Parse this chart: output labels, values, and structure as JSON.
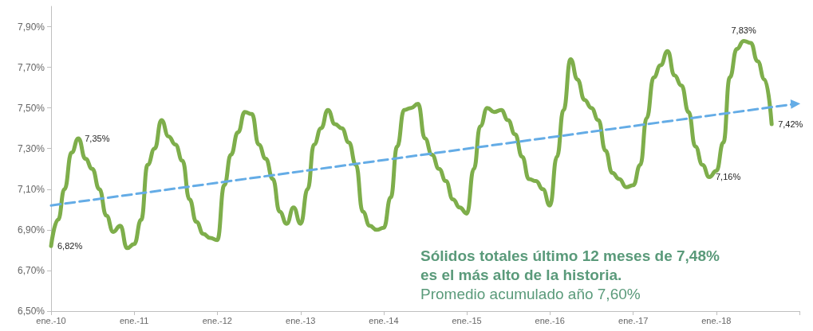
{
  "chart_data": {
    "type": "line",
    "annotations": [
      "Sólidos totales último 12 meses de 7,48%",
      "es el más alto de la historia.",
      "Promedio acumulado año 7,60%"
    ],
    "xlim": [
      "2010-01",
      "2019-01"
    ],
    "xticks": [
      {
        "value": "2010-01",
        "label": "ene.-10"
      },
      {
        "value": "2011-01",
        "label": "ene.-11"
      },
      {
        "value": "2012-01",
        "label": "ene.-12"
      },
      {
        "value": "2013-01",
        "label": "ene.-13"
      },
      {
        "value": "2014-01",
        "label": "ene.-14"
      },
      {
        "value": "2015-01",
        "label": "ene.-15"
      },
      {
        "value": "2016-01",
        "label": "ene.-16"
      },
      {
        "value": "2017-01",
        "label": "ene.-17"
      },
      {
        "value": "2018-01",
        "label": "ene.-18"
      },
      {
        "value": "2019-01",
        "label": null
      }
    ],
    "ylim": [
      6.5,
      8.0
    ],
    "yticks": [
      {
        "value": 6.5,
        "label": "6,50%"
      },
      {
        "value": 6.7,
        "label": "6,70%"
      },
      {
        "value": 6.9,
        "label": "6,90%"
      },
      {
        "value": 7.1,
        "label": "7,10%"
      },
      {
        "value": 7.3,
        "label": "7,30%"
      },
      {
        "value": 7.5,
        "label": "7,50%"
      },
      {
        "value": 7.7,
        "label": "7,70%"
      },
      {
        "value": 7.9,
        "label": "7,90%"
      }
    ],
    "grid": false,
    "series": [
      {
        "color": "#7eae4b",
        "line_style": "solid",
        "x": [
          "2010-01",
          "2010-02",
          "2010-03",
          "2010-04",
          "2010-05",
          "2010-06",
          "2010-07",
          "2010-08",
          "2010-09",
          "2010-10",
          "2010-11",
          "2010-12",
          "2011-01",
          "2011-02",
          "2011-03",
          "2011-04",
          "2011-05",
          "2011-06",
          "2011-07",
          "2011-08",
          "2011-09",
          "2011-10",
          "2011-11",
          "2011-12",
          "2012-01",
          "2012-02",
          "2012-03",
          "2012-04",
          "2012-05",
          "2012-06",
          "2012-07",
          "2012-08",
          "2012-09",
          "2012-10",
          "2012-11",
          "2012-12",
          "2013-01",
          "2013-02",
          "2013-03",
          "2013-04",
          "2013-05",
          "2013-06",
          "2013-07",
          "2013-08",
          "2013-09",
          "2013-10",
          "2013-11",
          "2013-12",
          "2014-01",
          "2014-02",
          "2014-03",
          "2014-04",
          "2014-05",
          "2014-06",
          "2014-07",
          "2014-08",
          "2014-09",
          "2014-10",
          "2014-11",
          "2014-12",
          "2015-01",
          "2015-02",
          "2015-03",
          "2015-04",
          "2015-05",
          "2015-06",
          "2015-07",
          "2015-08",
          "2015-09",
          "2015-10",
          "2015-11",
          "2015-12",
          "2016-01",
          "2016-02",
          "2016-03",
          "2016-04",
          "2016-05",
          "2016-06",
          "2016-07",
          "2016-08",
          "2016-09",
          "2016-10",
          "2016-11",
          "2016-12",
          "2017-01",
          "2017-02",
          "2017-03",
          "2017-04",
          "2017-05",
          "2017-06",
          "2017-07",
          "2017-08",
          "2017-09",
          "2017-10",
          "2017-11",
          "2017-12",
          "2018-01",
          "2018-02",
          "2018-03",
          "2018-04",
          "2018-05",
          "2018-06",
          "2018-07",
          "2018-08",
          "2018-09"
        ],
        "values": [
          6.82,
          6.95,
          7.1,
          7.28,
          7.35,
          7.25,
          7.2,
          7.1,
          6.97,
          6.89,
          6.92,
          6.81,
          6.83,
          6.95,
          7.22,
          7.3,
          7.44,
          7.36,
          7.32,
          7.24,
          7.05,
          6.94,
          6.88,
          6.86,
          6.85,
          7.12,
          7.27,
          7.38,
          7.48,
          7.47,
          7.32,
          7.25,
          7.15,
          6.99,
          6.93,
          7.01,
          6.93,
          7.1,
          7.32,
          7.4,
          7.49,
          7.42,
          7.4,
          7.33,
          7.22,
          6.99,
          6.92,
          6.9,
          6.91,
          7.06,
          7.31,
          7.49,
          7.5,
          7.52,
          7.35,
          7.27,
          7.2,
          7.14,
          7.05,
          7.01,
          6.98,
          7.2,
          7.41,
          7.5,
          7.48,
          7.49,
          7.44,
          7.37,
          7.26,
          7.15,
          7.14,
          7.1,
          7.02,
          7.26,
          7.49,
          7.74,
          7.64,
          7.54,
          7.5,
          7.44,
          7.29,
          7.18,
          7.15,
          7.11,
          7.12,
          7.22,
          7.45,
          7.65,
          7.71,
          7.78,
          7.66,
          7.61,
          7.48,
          7.31,
          7.22,
          7.16,
          7.19,
          7.33,
          7.65,
          7.79,
          7.83,
          7.82,
          7.73,
          7.64,
          7.42
        ],
        "value_labels": [
          "6,82%",
          null,
          null,
          null,
          "7,35%",
          null,
          null,
          null,
          null,
          null,
          null,
          null,
          null,
          null,
          null,
          null,
          null,
          null,
          null,
          null,
          null,
          null,
          null,
          null,
          null,
          null,
          null,
          null,
          null,
          null,
          null,
          null,
          null,
          null,
          null,
          null,
          null,
          null,
          null,
          null,
          null,
          null,
          null,
          null,
          null,
          null,
          null,
          null,
          null,
          null,
          null,
          null,
          null,
          null,
          null,
          null,
          null,
          null,
          null,
          null,
          null,
          null,
          null,
          null,
          null,
          null,
          null,
          null,
          null,
          null,
          null,
          null,
          null,
          null,
          null,
          null,
          null,
          null,
          null,
          null,
          null,
          null,
          null,
          null,
          null,
          null,
          null,
          null,
          null,
          null,
          null,
          null,
          null,
          null,
          null,
          "7,16%",
          null,
          null,
          null,
          null,
          "7,83%",
          null,
          null,
          null,
          "7,42%"
        ]
      },
      {
        "color": "#64ace6",
        "line_style": "dashed",
        "x": [
          "2010-01",
          "2018-12-15"
        ],
        "values": [
          7.02,
          7.52
        ]
      }
    ]
  }
}
